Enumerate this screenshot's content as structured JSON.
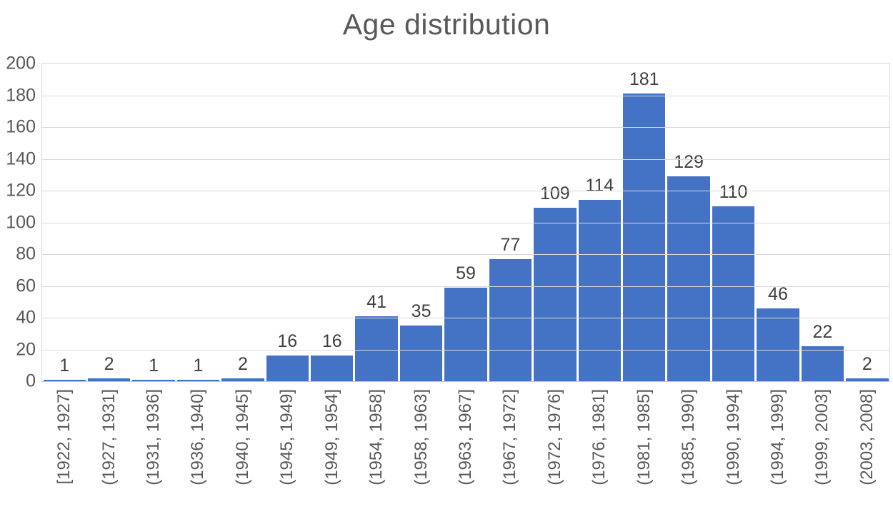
{
  "chart_data": {
    "type": "bar",
    "title": "Age distribution",
    "categories": [
      "[1922, 1927]",
      "(1927, 1931]",
      "(1931, 1936]",
      "(1936, 1940]",
      "(1940, 1945]",
      "(1945, 1949]",
      "(1949, 1954]",
      "(1954, 1958]",
      "(1958, 1963]",
      "(1963, 1967]",
      "(1967, 1972]",
      "(1972, 1976]",
      "(1976, 1981]",
      "(1981, 1985]",
      "(1985, 1990]",
      "(1990, 1994]",
      "(1994, 1999]",
      "(1999, 2003]",
      "(2003, 2008]"
    ],
    "values": [
      1,
      2,
      1,
      1,
      2,
      16,
      16,
      41,
      35,
      59,
      77,
      109,
      114,
      181,
      129,
      110,
      46,
      22,
      2
    ],
    "xlabel": "",
    "ylabel": "",
    "ylim": [
      0,
      200
    ],
    "ytick_step": 20,
    "grid": true,
    "data_labels": true,
    "legend": "none"
  },
  "colors": {
    "bar": "#4472C4",
    "gridline": "#D9D9D9",
    "axis_text": "#595959",
    "data_label_text": "#404040",
    "title_text": "#595959"
  }
}
